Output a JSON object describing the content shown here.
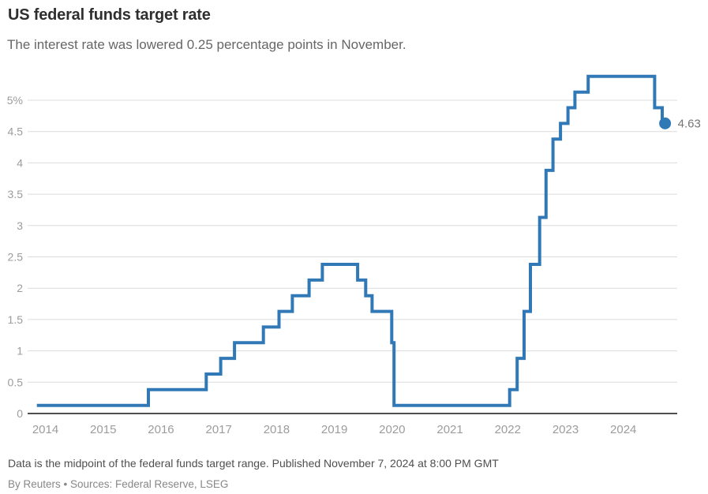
{
  "header": {
    "title": "US federal funds target rate",
    "subtitle": "The interest rate was lowered 0.25 percentage points in November."
  },
  "footer": {
    "note": "Data is the midpoint of the federal funds target range. Published November 7, 2024 at 8:00 PM GMT",
    "byline": "By Reuters • Sources: Federal Reserve, LSEG"
  },
  "colors": {
    "line": "#3079b6",
    "grid": "#dcdcdc",
    "axis": "#4f4f4f",
    "tick_label": "#9c9c9c",
    "title": "#2f2f2f",
    "subtitle": "#666666",
    "end_label": "#757575"
  },
  "chart_data": {
    "type": "line",
    "line_style": "step-after",
    "title": "US federal funds target rate",
    "xlabel": "",
    "ylabel": "",
    "unit": "%",
    "grid": true,
    "x_axis": {
      "range": [
        2013.87,
        2025.11
      ],
      "ticks": [
        2014,
        2015,
        2016,
        2017,
        2018,
        2019,
        2020,
        2021,
        2022,
        2023,
        2024
      ],
      "tick_labels": [
        "2014",
        "2015",
        "2016",
        "2017",
        "2018",
        "2019",
        "2020",
        "2021",
        "2022",
        "2023",
        "2024"
      ]
    },
    "y_axis": {
      "range": [
        0,
        5.5
      ],
      "ticks": [
        5,
        4.5,
        4,
        3.5,
        3,
        2.5,
        2,
        1.5,
        1,
        0.5,
        0
      ],
      "tick_labels": [
        "5%",
        "4.5",
        "4",
        "3.5",
        "3",
        "2.5",
        "2",
        "1.5",
        "1",
        "0.5",
        "0"
      ]
    },
    "series": [
      {
        "name": "Federal funds target rate midpoint",
        "color": "#3079b6",
        "points": [
          [
            2014.03,
            0.13
          ],
          [
            2015.96,
            0.38
          ],
          [
            2016.96,
            0.63
          ],
          [
            2017.21,
            0.88
          ],
          [
            2017.45,
            1.13
          ],
          [
            2017.95,
            1.38
          ],
          [
            2018.22,
            1.63
          ],
          [
            2018.45,
            1.88
          ],
          [
            2018.74,
            2.13
          ],
          [
            2018.97,
            2.38
          ],
          [
            2019.58,
            2.13
          ],
          [
            2019.72,
            1.88
          ],
          [
            2019.83,
            1.63
          ],
          [
            2020.17,
            1.13
          ],
          [
            2020.21,
            0.13
          ],
          [
            2022.21,
            0.38
          ],
          [
            2022.34,
            0.88
          ],
          [
            2022.46,
            1.63
          ],
          [
            2022.57,
            2.38
          ],
          [
            2022.73,
            3.13
          ],
          [
            2022.84,
            3.88
          ],
          [
            2022.96,
            4.38
          ],
          [
            2023.09,
            4.63
          ],
          [
            2023.22,
            4.88
          ],
          [
            2023.34,
            5.13
          ],
          [
            2023.57,
            5.38
          ],
          [
            2024.72,
            4.88
          ],
          [
            2024.85,
            4.63
          ]
        ]
      }
    ],
    "end_marker": {
      "x": 2024.9,
      "y": 4.63,
      "label": "4.63"
    }
  }
}
